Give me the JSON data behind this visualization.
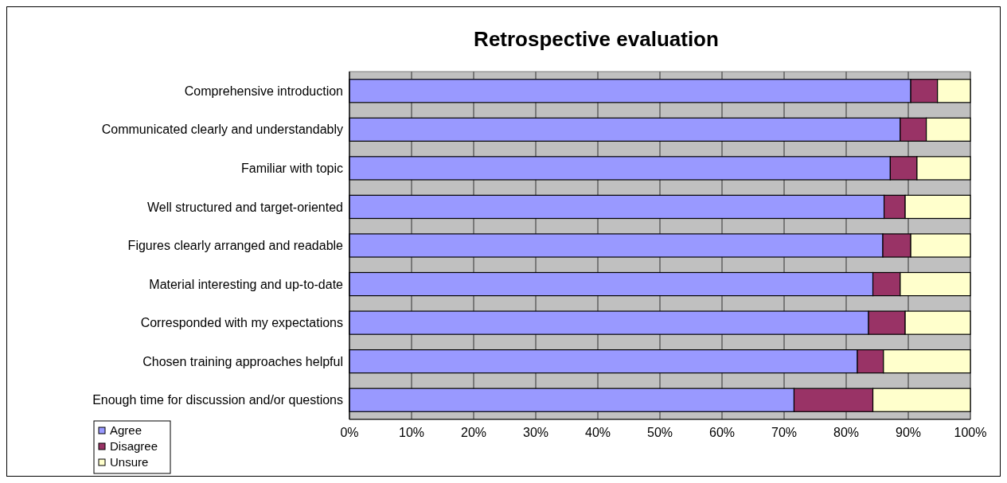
{
  "chart_data": {
    "type": "bar",
    "orientation": "horizontal",
    "stacked": true,
    "title": "Retrospective evaluation",
    "categories": [
      "Comprehensive introduction",
      "Communicated clearly and understandably",
      "Familiar with topic",
      "Well structured and target-oriented",
      "Figures clearly arranged and readable",
      "Material interesting and up-to-date",
      "Corresponded with my expectations",
      "Chosen training approaches helpful",
      "Enough time for discussion and/or questions"
    ],
    "series": [
      {
        "name": "Agree",
        "color": "#9999ff",
        "values": [
          90.4,
          88.7,
          87.1,
          86.1,
          85.9,
          84.3,
          83.6,
          81.8,
          71.6
        ]
      },
      {
        "name": "Disagree",
        "color": "#993366",
        "values": [
          4.3,
          4.2,
          4.3,
          3.4,
          4.5,
          4.4,
          5.9,
          4.2,
          12.7
        ]
      },
      {
        "name": "Unsure",
        "color": "#ffffcc",
        "values": [
          5.3,
          7.1,
          8.6,
          10.5,
          9.6,
          11.3,
          10.5,
          14.0,
          15.7
        ]
      }
    ],
    "xlim": [
      0,
      100
    ],
    "xticks": [
      {
        "value": 0,
        "label": "0%"
      },
      {
        "value": 10,
        "label": "10%"
      },
      {
        "value": 20,
        "label": "20%"
      },
      {
        "value": 30,
        "label": "30%"
      },
      {
        "value": 40,
        "label": "40%"
      },
      {
        "value": 50,
        "label": "50%"
      },
      {
        "value": 60,
        "label": "60%"
      },
      {
        "value": 70,
        "label": "70%"
      },
      {
        "value": 80,
        "label": "80%"
      },
      {
        "value": 90,
        "label": "90%"
      },
      {
        "value": 100,
        "label": "100%"
      }
    ],
    "grid": "x",
    "legend": "bottom left"
  }
}
